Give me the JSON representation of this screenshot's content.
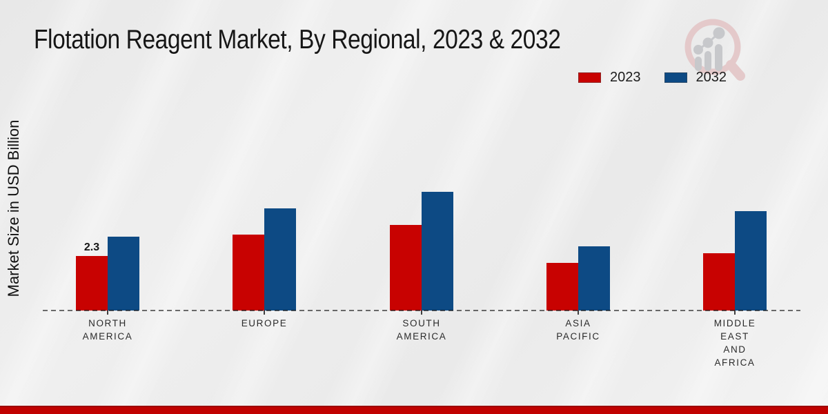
{
  "page": {
    "title": "Flotation Reagent Market, By Regional, 2023 & 2032",
    "y_axis_label": "Market Size in USD Billion"
  },
  "colors": {
    "series_2023": "#c80201",
    "series_2032": "#0d4a84",
    "footer_stripe": "#c00100",
    "background": "#ededed",
    "logo_ring": "#e4c9ca",
    "logo_bars": "#c7c8cb"
  },
  "icons": {
    "watermark": "magnifier-growth-chart-icon"
  },
  "chart_data": {
    "type": "bar",
    "title": "Flotation Reagent Market, By Regional, 2023 & 2032",
    "xlabel": "",
    "ylabel": "Market Size in USD Billion",
    "categories": [
      "NORTH AMERICA",
      "EUROPE",
      "SOUTH AMERICA",
      "ASIA PACIFIC",
      "MIDDLE EAST AND AFRICA"
    ],
    "label_lines": [
      [
        "NORTH",
        "AMERICA"
      ],
      [
        "EUROPE"
      ],
      [
        "SOUTH",
        "AMERICA"
      ],
      [
        "ASIA",
        "PACIFIC"
      ],
      [
        "MIDDLE",
        "EAST",
        "AND",
        "AFRICA"
      ]
    ],
    "series": [
      {
        "name": "2023",
        "color": "#c80201",
        "values": [
          2.3,
          3.2,
          3.6,
          2.0,
          2.4
        ]
      },
      {
        "name": "2032",
        "color": "#0d4a84",
        "values": [
          3.1,
          4.3,
          5.0,
          2.7,
          4.2
        ]
      }
    ],
    "data_labels": [
      {
        "series_index": 0,
        "category_index": 0,
        "text": "2.3"
      }
    ],
    "ylim": [
      0,
      5.2
    ],
    "grid": false,
    "axis_line": "dashed-baseline",
    "legend_position": "top-right"
  }
}
